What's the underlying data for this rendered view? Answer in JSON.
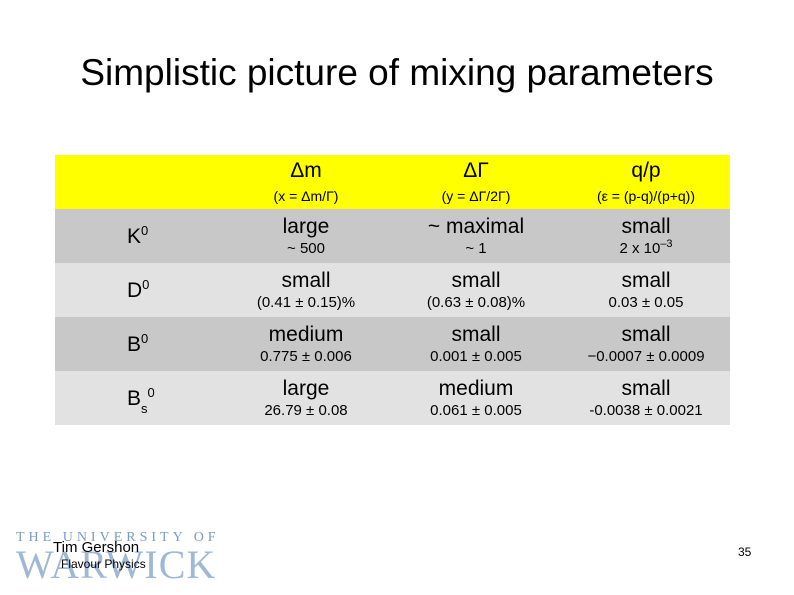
{
  "title": "Simplistic picture of mixing parameters",
  "header": {
    "col1": {
      "main": "Δm",
      "sub": "(x = Δm/Γ)"
    },
    "col2": {
      "main": "ΔΓ",
      "sub": "(y = ΔΓ/2Γ)"
    },
    "col3": {
      "main": "q/p",
      "sub": "(ε = (p-q)/(p+q))"
    }
  },
  "rows": [
    {
      "label": "K",
      "sup": "0",
      "sub": "",
      "c1": {
        "big": "large",
        "small": "~ 500"
      },
      "c2": {
        "big": "~ maximal",
        "small": "~ 1"
      },
      "c3": {
        "big": "small",
        "small": "2 x 10",
        "exp": "–3"
      }
    },
    {
      "label": "D",
      "sup": "0",
      "sub": "",
      "c1": {
        "big": "small",
        "small": "(0.41 ± 0.15)%"
      },
      "c2": {
        "big": "small",
        "small": "(0.63 ± 0.08)%"
      },
      "c3": {
        "big": "small",
        "small": "0.03 ± 0.05"
      }
    },
    {
      "label": "B",
      "sup": "0",
      "sub": "",
      "c1": {
        "big": "medium",
        "small": "0.775 ± 0.006"
      },
      "c2": {
        "big": "small",
        "small": "0.001 ± 0.005"
      },
      "c3": {
        "big": "small",
        "small": "−0.0007 ± 0.0009"
      }
    },
    {
      "label": "B",
      "sup": "0",
      "sub": "s",
      "c1": {
        "big": "large",
        "small": "26.79 ± 0.08"
      },
      "c2": {
        "big": "medium",
        "small": "0.061 ± 0.005"
      },
      "c3": {
        "big": "small",
        "small": "-0.0038 ± 0.0021"
      }
    }
  ],
  "footer": {
    "logo_top": "THE UNIVERSITY OF",
    "logo_main": "WARWICK",
    "author": "Tim Gershon",
    "subtitle": "Flavour Physics",
    "page": "35"
  },
  "colors": {
    "header": "#ffff00",
    "row_dark": "#c8c8c8",
    "row_light": "#e2e2e2"
  }
}
